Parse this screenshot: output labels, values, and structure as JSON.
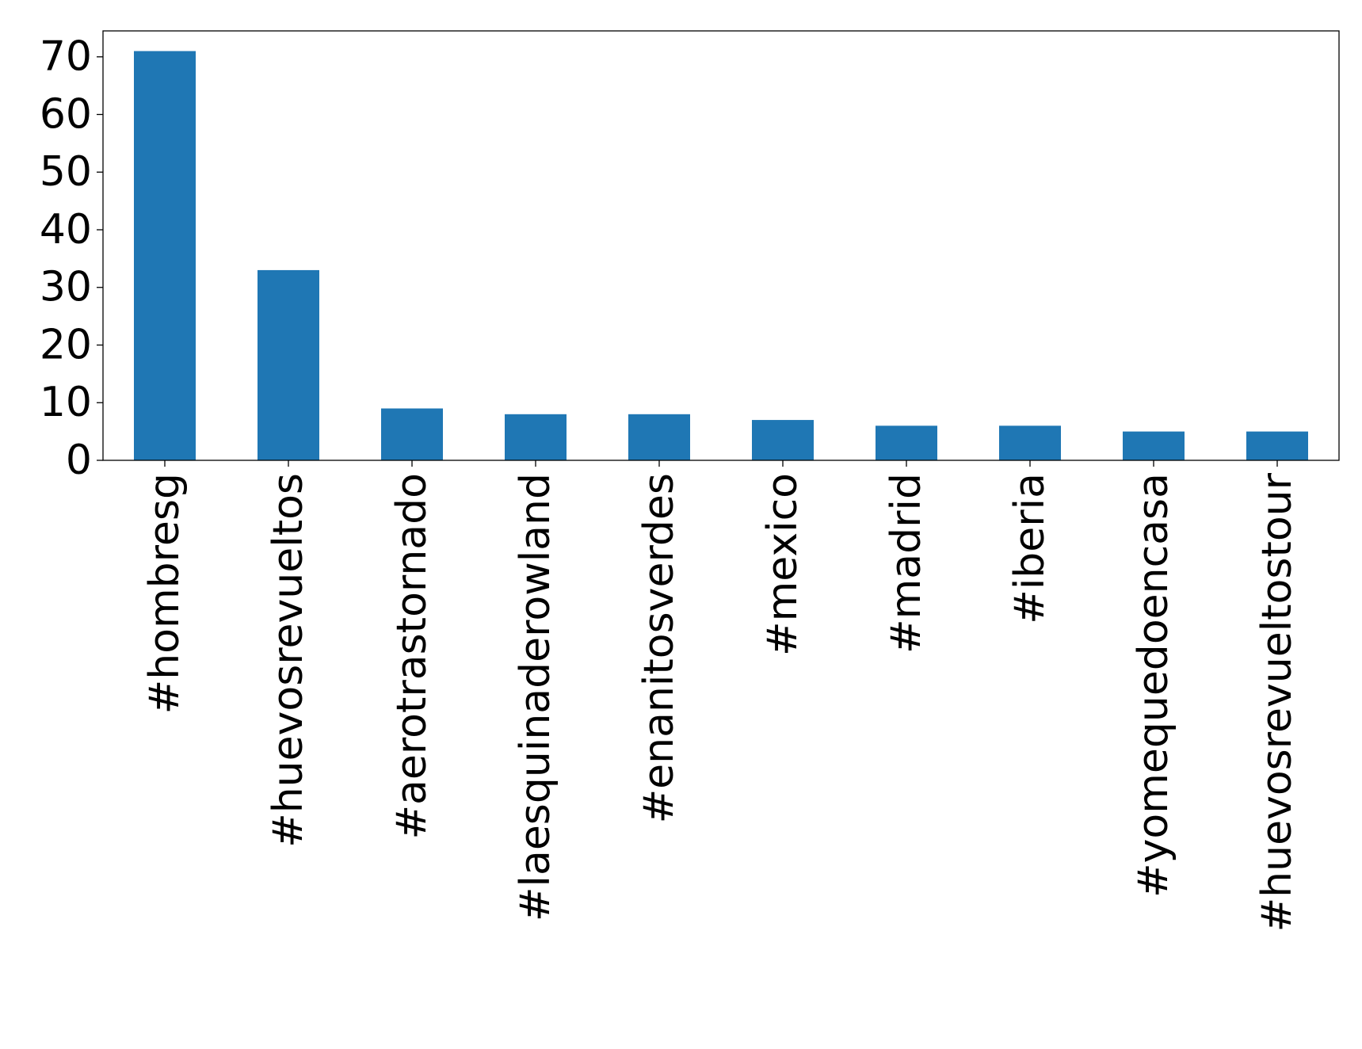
{
  "chart_data": {
    "type": "bar",
    "title": "",
    "xlabel": "",
    "ylabel": "",
    "categories": [
      "#hombresg",
      "#huevosrevueltos",
      "#aerotrastornado",
      "#laesquinaderowland",
      "#enanitosverdes",
      "#mexico",
      "#madrid",
      "#iberia",
      "#yomequedoencasa",
      "#huevosrevueltostour"
    ],
    "values": [
      71,
      33,
      9,
      8,
      8,
      7,
      6,
      6,
      5,
      5
    ],
    "ylim": [
      0,
      74.5
    ],
    "yticks": [
      0,
      10,
      20,
      30,
      40,
      50,
      60,
      70
    ],
    "bar_color": "#1f77b4",
    "grid": false,
    "legend": "none"
  }
}
